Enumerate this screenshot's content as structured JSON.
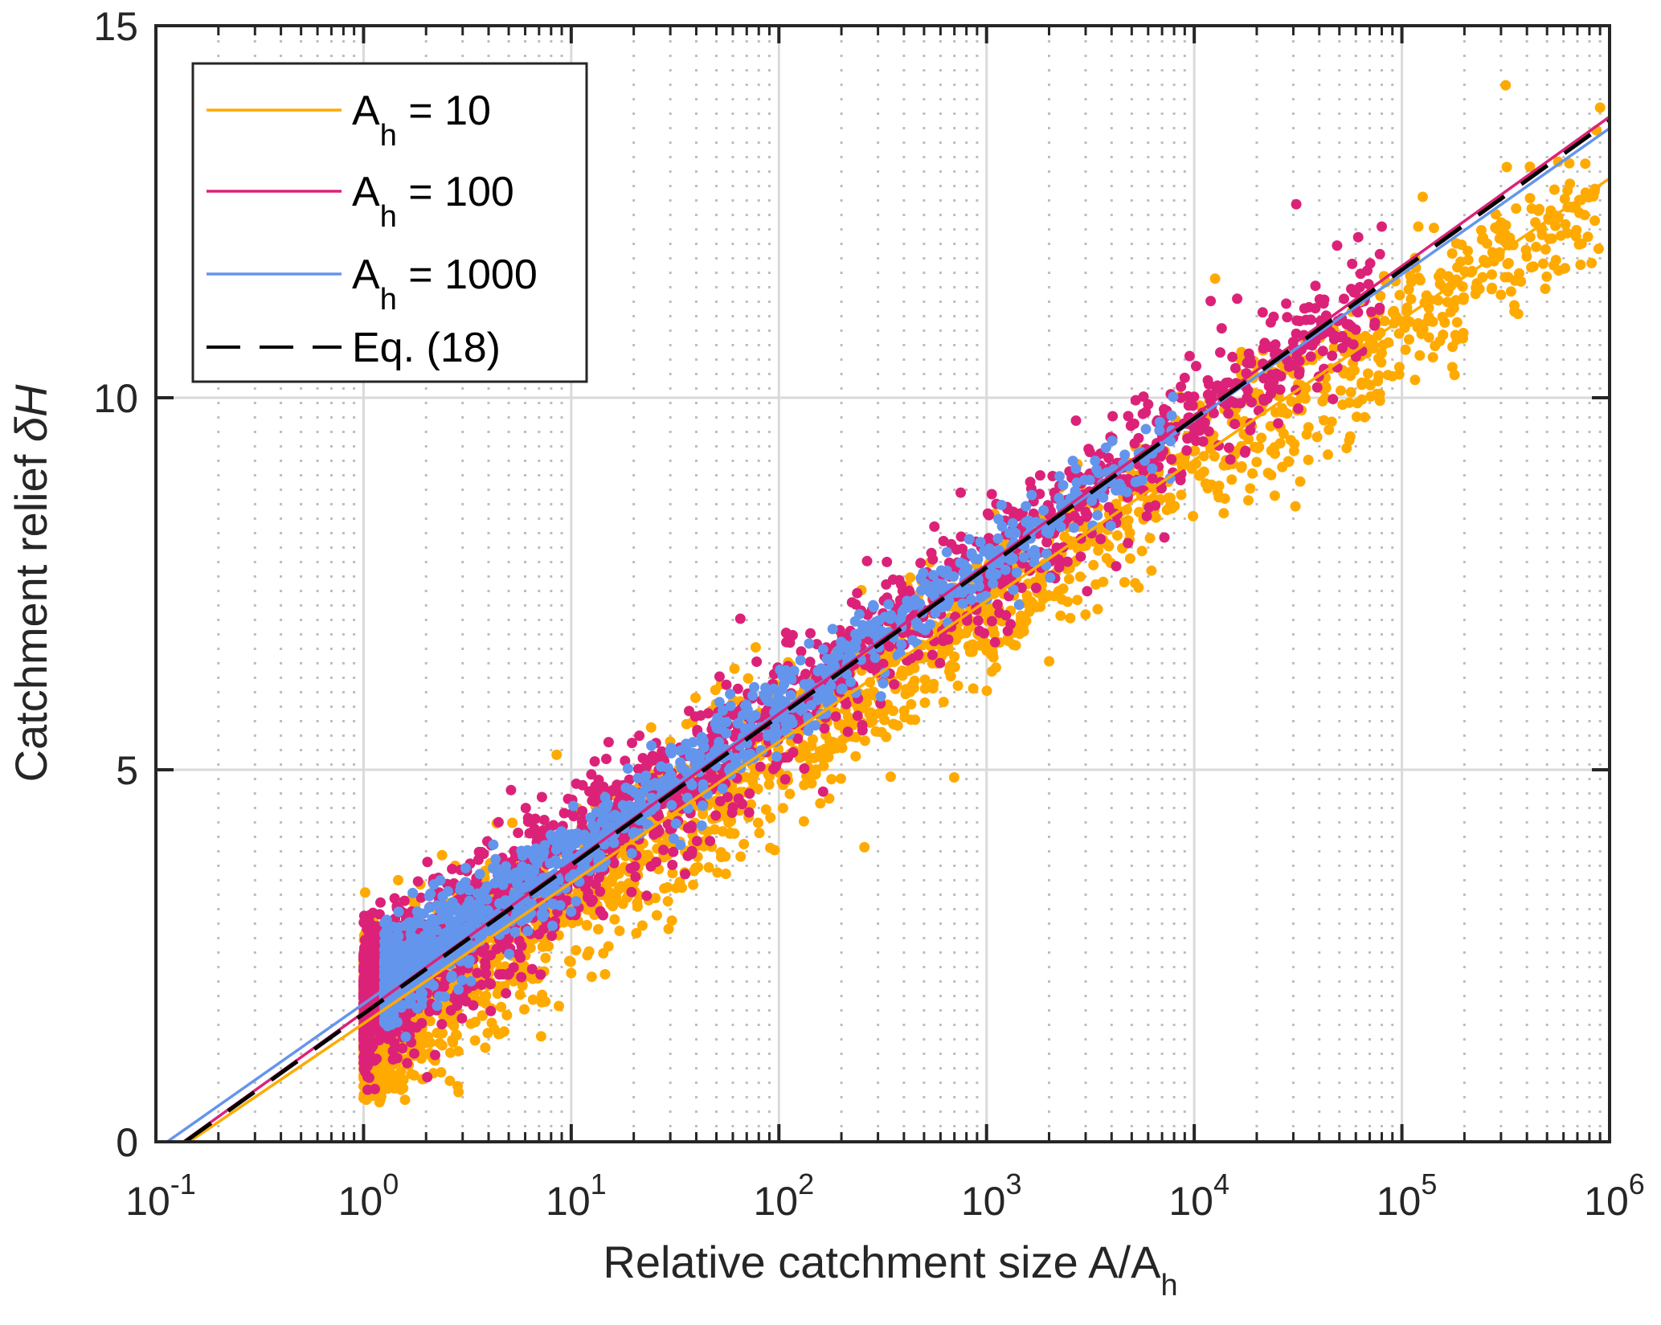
{
  "chart_data": {
    "type": "scatter",
    "title": "",
    "xlabel": "Relative catchment size A/A",
    "xlabel_subscript": "h",
    "ylabel": "Catchment relief ",
    "ylabel_symbol": "δH",
    "xscale": "log",
    "xlim": [
      0.1,
      1000000
    ],
    "ylim": [
      0,
      15
    ],
    "grid": true,
    "minor_grid": true,
    "x_ticks": [
      {
        "base": "10",
        "exp": "-1",
        "value": 0.1
      },
      {
        "base": "10",
        "exp": "0",
        "value": 1
      },
      {
        "base": "10",
        "exp": "1",
        "value": 10
      },
      {
        "base": "10",
        "exp": "2",
        "value": 100
      },
      {
        "base": "10",
        "exp": "3",
        "value": 1000
      },
      {
        "base": "10",
        "exp": "4",
        "value": 10000
      },
      {
        "base": "10",
        "exp": "5",
        "value": 100000
      },
      {
        "base": "10",
        "exp": "6",
        "value": 1000000
      }
    ],
    "y_ticks": [
      {
        "label": "0",
        "value": 0
      },
      {
        "label": "5",
        "value": 5
      },
      {
        "label": "10",
        "value": 10
      },
      {
        "label": "15",
        "value": 15
      }
    ],
    "legend": {
      "placement": "top-left",
      "entries": [
        {
          "prefix": "A",
          "sub": "h",
          "suffix": " = 10",
          "color": "#FFAA00",
          "style": "solid"
        },
        {
          "prefix": "A",
          "sub": "h",
          "suffix": " = 100",
          "color": "#DC2278",
          "style": "solid"
        },
        {
          "prefix": "A",
          "sub": "h",
          "suffix": " = 1000",
          "color": "#6495ED",
          "style": "solid"
        },
        {
          "prefix": "",
          "sub": "",
          "suffix": "Eq. (18)",
          "color": "#000000",
          "style": "dashed"
        }
      ]
    },
    "fit_lines": [
      {
        "name": "A_h = 10",
        "color": "#FFAA00",
        "style": "solid",
        "intercept": 1.59,
        "slope_per_decade": 1.893
      },
      {
        "name": "A_h = 100",
        "color": "#DC2278",
        "style": "solid",
        "intercept": 1.74,
        "slope_per_decade": 2.006
      },
      {
        "name": "A_h = 1000",
        "color": "#6495ED",
        "style": "solid",
        "intercept": 1.855,
        "slope_per_decade": 1.961
      },
      {
        "name": "Eq. (18)",
        "color": "#000000",
        "style": "dashed",
        "intercept": 1.72,
        "slope_per_decade": 2.0
      }
    ],
    "series": [
      {
        "name": "A_h = 10",
        "color": "#FFAA00",
        "log10x_range": [
          0.0,
          5.95
        ],
        "center_intercept": 1.45,
        "center_slope": 1.9,
        "spread": 0.55,
        "count": 2600
      },
      {
        "name": "A_h = 100",
        "color": "#DC2278",
        "log10x_range": [
          0.0,
          4.9
        ],
        "center_intercept": 1.85,
        "center_slope": 1.95,
        "spread": 0.5,
        "count": 2000
      },
      {
        "name": "A_h = 1000",
        "color": "#6495ED",
        "log10x_range": [
          0.1,
          3.9
        ],
        "center_intercept": 1.95,
        "center_slope": 1.93,
        "spread": 0.32,
        "count": 1200
      }
    ],
    "outliers": [
      {
        "series": "A_h = 10",
        "x": 316000,
        "y": 14.2
      },
      {
        "series": "A_h = 10",
        "x": 900000,
        "y": 13.9
      },
      {
        "series": "A_h = 10",
        "x": 320000,
        "y": 13.1
      },
      {
        "series": "A_h = 10",
        "x": 126000,
        "y": 12.7
      },
      {
        "series": "A_h = 10",
        "x": 120000,
        "y": 12.3
      },
      {
        "series": "A_h = 10",
        "x": 63000,
        "y": 11.3
      },
      {
        "series": "A_h = 100",
        "x": 31000,
        "y": 12.6
      },
      {
        "series": "A_h = 100",
        "x": 80000,
        "y": 12.3
      },
      {
        "series": "A_h = 10",
        "x": 120000,
        "y": 11.0
      },
      {
        "series": "A_h = 10",
        "x": 12600,
        "y": 11.6
      },
      {
        "series": "A_h = 100",
        "x": 12000,
        "y": 11.3
      },
      {
        "series": "A_h = 10",
        "x": 80000,
        "y": 10.6
      }
    ]
  }
}
